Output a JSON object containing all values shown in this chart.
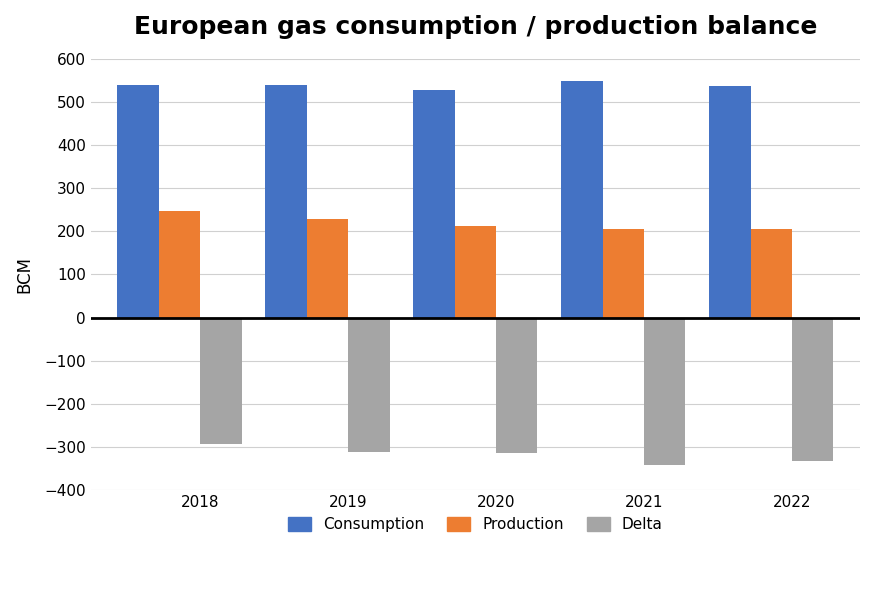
{
  "title": "European gas consumption / production balance",
  "years": [
    "2018",
    "2019",
    "2020",
    "2021",
    "2022"
  ],
  "consumption": [
    540,
    540,
    527,
    548,
    537
  ],
  "production": [
    247,
    228,
    212,
    205,
    205
  ],
  "delta": [
    -293,
    -312,
    -315,
    -343,
    -332
  ],
  "bar_colors": {
    "consumption": "#4472C4",
    "production": "#ED7D31",
    "delta": "#A5A5A5"
  },
  "ylabel": "BCM",
  "ylim": [
    -400,
    600
  ],
  "yticks": [
    -400,
    -300,
    -200,
    -100,
    0,
    100,
    200,
    300,
    400,
    500,
    600
  ],
  "legend_labels": [
    "Consumption",
    "Production",
    "Delta"
  ],
  "title_fontsize": 18,
  "axis_fontsize": 12,
  "tick_fontsize": 11,
  "legend_fontsize": 11,
  "background_color": "#ffffff",
  "grid_color": "#d0d0d0",
  "bar_width": 0.28
}
